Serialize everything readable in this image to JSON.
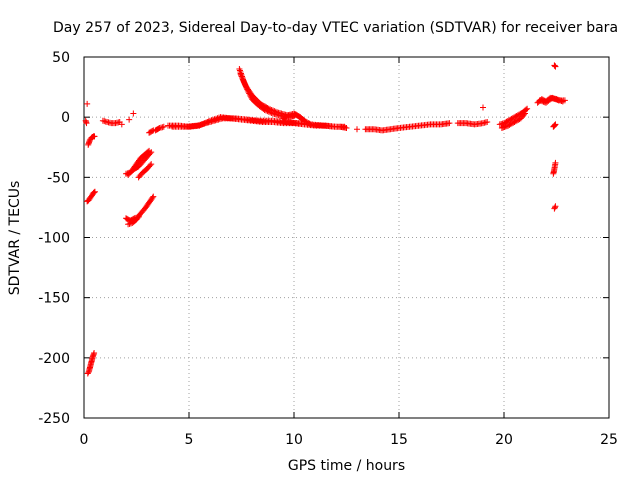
{
  "chart_data": {
    "type": "scatter",
    "title": "Day 257 of 2023, Sidereal Day-to-day VTEC variation (SDTVAR) for receiver bara",
    "xlabel": "GPS time / hours",
    "ylabel": "SDTVAR / TECUs",
    "xlim": [
      0,
      25
    ],
    "ylim": [
      -250,
      50
    ],
    "xticks": [
      0,
      5,
      10,
      15,
      20,
      25
    ],
    "yticks": [
      -250,
      -200,
      -150,
      -100,
      -50,
      0,
      50
    ],
    "grid": true,
    "marker": "+",
    "color": "#ff0000",
    "segments": [
      {
        "x": [
          0.08,
          0.12
        ],
        "y": [
          -3,
          -5
        ]
      },
      {
        "x": [
          0.15
        ],
        "y": [
          11
        ]
      },
      {
        "x": [
          0.2,
          0.28,
          0.36,
          0.45,
          0.5
        ],
        "y": [
          -23,
          -19,
          -17,
          -16,
          -16
        ]
      },
      {
        "x": [
          0.15,
          0.22,
          0.3,
          0.38,
          0.45,
          0.52
        ],
        "y": [
          -70,
          -69,
          -67,
          -65,
          -63,
          -62
        ]
      },
      {
        "x": [
          0.18,
          0.24,
          0.3,
          0.36,
          0.42,
          0.48
        ],
        "y": [
          -213,
          -211,
          -207,
          -203,
          -199,
          -196
        ]
      },
      {
        "x": [
          0.9,
          1.1,
          1.3,
          1.5,
          1.7
        ],
        "y": [
          -3,
          -4,
          -5,
          -5,
          -4
        ]
      },
      {
        "x": [
          1.8
        ],
        "y": [
          -6
        ]
      },
      {
        "x": [
          2.0,
          2.2,
          2.4,
          2.6,
          2.8,
          3.0,
          3.2
        ],
        "y": [
          -47,
          -46,
          -43,
          -41,
          -37,
          -33,
          -29
        ]
      },
      {
        "x": [
          2.1,
          2.3,
          2.5,
          2.7,
          2.9,
          3.1
        ],
        "y": [
          -48,
          -44,
          -39,
          -34,
          -31,
          -28
        ]
      },
      {
        "x": [
          2.15
        ],
        "y": [
          -2
        ]
      },
      {
        "x": [
          2.35
        ],
        "y": [
          3
        ]
      },
      {
        "x": [
          2.0,
          2.2,
          2.4,
          2.6
        ],
        "y": [
          -84,
          -86,
          -84,
          -83
        ]
      },
      {
        "x": [
          2.1,
          2.3,
          2.5,
          2.7,
          2.9,
          3.1,
          3.3
        ],
        "y": [
          -89,
          -88,
          -85,
          -80,
          -76,
          -71,
          -66
        ]
      },
      {
        "x": [
          2.6,
          2.8,
          3.0,
          3.2
        ],
        "y": [
          -50,
          -46,
          -43,
          -39
        ]
      },
      {
        "x": [
          3.1,
          3.3
        ],
        "y": [
          -13,
          -11
        ]
      },
      {
        "x": [
          3.4,
          3.6,
          3.8
        ],
        "y": [
          -11,
          -9,
          -8
        ]
      },
      {
        "x": [
          4.0,
          4.5,
          5.0,
          5.5,
          6.0,
          6.5,
          7.0,
          7.5,
          8.0,
          8.5,
          9.0,
          9.5,
          10.0,
          10.5,
          11.0,
          11.5,
          12.0,
          12.4
        ],
        "y": [
          -7,
          -7,
          -8,
          -7,
          -3,
          0,
          -1,
          -2,
          -3,
          -4,
          -4,
          -5,
          -5,
          -6,
          -7,
          -7,
          -8,
          -8
        ]
      },
      {
        "x": [
          4.2,
          4.8,
          5.4,
          6.0,
          6.6,
          7.2,
          7.8,
          8.4,
          9.0,
          9.6,
          10.2,
          10.8,
          11.4,
          12.0
        ],
        "y": [
          -8,
          -8,
          -7,
          -4,
          -1,
          -1,
          -2,
          -3,
          -3,
          -4,
          -5,
          -6,
          -7,
          -8
        ]
      },
      {
        "x": [
          7.4,
          7.6,
          7.8,
          8.0,
          8.3,
          8.6,
          9.0,
          9.4,
          9.8,
          10.1,
          10.3,
          10.5,
          10.8
        ],
        "y": [
          40,
          30,
          22,
          15,
          10,
          6,
          3,
          1,
          0,
          2,
          0,
          -3,
          -6
        ]
      },
      {
        "x": [
          7.45,
          7.7,
          8.0,
          8.4,
          8.8,
          9.2,
          9.6,
          10.0
        ],
        "y": [
          36,
          26,
          18,
          11,
          7,
          4,
          2,
          1
        ]
      },
      {
        "x": [
          9.5,
          9.8,
          10.0,
          10.2,
          10.4
        ],
        "y": [
          -1,
          2,
          3,
          1,
          -2
        ]
      },
      {
        "x": [
          12.2,
          12.5
        ],
        "y": [
          -8,
          -9
        ]
      },
      {
        "x": [
          13.0
        ],
        "y": [
          -10
        ]
      },
      {
        "x": [
          13.4,
          13.8,
          14.2,
          14.6,
          15.0,
          15.5,
          16.0,
          16.5,
          17.0,
          17.4
        ],
        "y": [
          -10,
          -10,
          -11,
          -10,
          -9,
          -8,
          -7,
          -6,
          -6,
          -5
        ]
      },
      {
        "x": [
          17.8,
          18.2,
          18.6,
          19.0,
          19.2
        ],
        "y": [
          -5,
          -5,
          -6,
          -5,
          -4
        ]
      },
      {
        "x": [
          19.0
        ],
        "y": [
          8
        ]
      },
      {
        "x": [
          19.8,
          20.0,
          20.3,
          20.6,
          20.9,
          21.1
        ],
        "y": [
          -6,
          -5,
          -2,
          1,
          4,
          7
        ]
      },
      {
        "x": [
          19.9,
          20.2,
          20.5,
          20.8,
          21.0
        ],
        "y": [
          -9,
          -7,
          -4,
          -1,
          3
        ]
      },
      {
        "x": [
          21.6,
          21.8,
          22.0,
          22.2,
          22.5,
          22.8
        ],
        "y": [
          12,
          15,
          13,
          16,
          15,
          13
        ]
      },
      {
        "x": [
          21.7,
          22.0,
          22.3,
          22.6,
          22.9
        ],
        "y": [
          14,
          12,
          16,
          14,
          14
        ]
      },
      {
        "x": [
          22.4,
          22.45
        ],
        "y": [
          43,
          42
        ]
      },
      {
        "x": [
          22.35,
          22.4,
          22.45
        ],
        "y": [
          -8,
          -7,
          -6
        ]
      },
      {
        "x": [
          22.35,
          22.4,
          22.45
        ],
        "y": [
          -47,
          -43,
          -38
        ]
      },
      {
        "x": [
          22.4,
          22.45
        ],
        "y": [
          -76,
          -74
        ]
      }
    ]
  }
}
